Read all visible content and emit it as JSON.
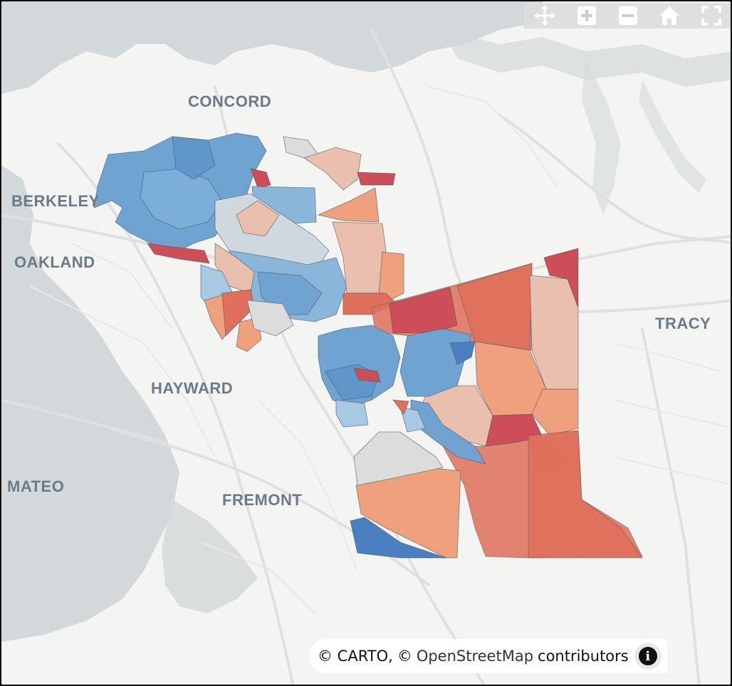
{
  "map": {
    "city_labels": [
      {
        "id": "concord",
        "text": "CONCORD"
      },
      {
        "id": "berkeley",
        "text": "BERKELEY"
      },
      {
        "id": "oakland",
        "text": "OAKLAND"
      },
      {
        "id": "tracy",
        "text": "TRACY"
      },
      {
        "id": "hayward",
        "text": "HAYWARD"
      },
      {
        "id": "mateo",
        "text": "MATEO"
      },
      {
        "id": "fremont",
        "text": "FREMONT"
      }
    ],
    "colors": {
      "dark_blue": "#4a7fc1",
      "mid_blue": "#6fa4d2",
      "light_blue": "#a7c9e4",
      "neutral": "#dcdcdc",
      "light_red": "#ebbfae",
      "salmon": "#efa07d",
      "mid_red": "#e0705b",
      "dark_red": "#cd4d58",
      "water": "#d3d8db",
      "land": "#f4f4f2",
      "road": "#e2e2e2"
    }
  },
  "toolbar": {
    "tools": [
      {
        "id": "pan",
        "icon": "pan-arrows-icon"
      },
      {
        "id": "zoom-in",
        "icon": "plus-icon"
      },
      {
        "id": "zoom-out",
        "icon": "minus-icon"
      },
      {
        "id": "home",
        "icon": "home-icon"
      },
      {
        "id": "fullscreen",
        "icon": "fullscreen-icon"
      }
    ]
  },
  "attribution": {
    "prefix": "© CARTO,",
    "osm_symbol": "©",
    "osm_link": "OpenStreetMap",
    "suffix": "contributors",
    "info_glyph": "i"
  }
}
